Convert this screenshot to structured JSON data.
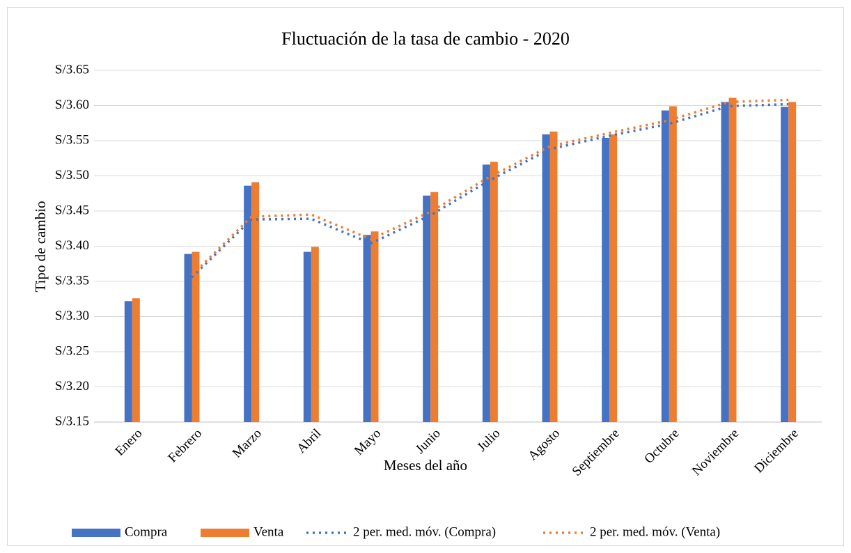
{
  "chart_data": {
    "type": "bar",
    "title": "Fluctuación de la tasa de cambio - 2020",
    "x_label": "Meses del año",
    "y_label": "Tipo de cambio",
    "categories": [
      "Enero",
      "Febrero",
      "Marzo",
      "Abril",
      "Mayo",
      "Junio",
      "Julio",
      "Agosto",
      "Septiembre",
      "Octubre",
      "Noviembre",
      "Diciembre"
    ],
    "series": [
      {
        "name": "Compra",
        "color": "#4472c4",
        "kind": "bar",
        "values": [
          3.322,
          3.389,
          3.486,
          3.392,
          3.416,
          3.472,
          3.516,
          3.559,
          3.554,
          3.593,
          3.605,
          3.598
        ]
      },
      {
        "name": "Venta",
        "color": "#ed7d31",
        "kind": "bar",
        "values": [
          3.326,
          3.392,
          3.491,
          3.399,
          3.421,
          3.477,
          3.52,
          3.563,
          3.559,
          3.599,
          3.611,
          3.605
        ]
      },
      {
        "name": "2 per. med. móv. (Compra)",
        "color": "#4472c4",
        "kind": "line",
        "values": [
          null,
          3.356,
          3.438,
          3.439,
          3.404,
          3.444,
          3.494,
          3.538,
          3.557,
          3.574,
          3.599,
          3.602
        ]
      },
      {
        "name": "2 per. med. móv. (Venta)",
        "color": "#ed7d31",
        "kind": "line",
        "values": [
          null,
          3.359,
          3.442,
          3.445,
          3.41,
          3.449,
          3.499,
          3.542,
          3.561,
          3.579,
          3.605,
          3.608
        ]
      }
    ],
    "ylim": [
      3.15,
      3.65
    ],
    "yticks": [
      {
        "value": 3.15,
        "label": "S/3.15"
      },
      {
        "value": 3.2,
        "label": "S/3.20"
      },
      {
        "value": 3.25,
        "label": "S/3.25"
      },
      {
        "value": 3.3,
        "label": "S/3.30"
      },
      {
        "value": 3.35,
        "label": "S/3.35"
      },
      {
        "value": 3.4,
        "label": "S/3.40"
      },
      {
        "value": 3.45,
        "label": "S/3.45"
      },
      {
        "value": 3.5,
        "label": "S/3.50"
      },
      {
        "value": 3.55,
        "label": "S/3.55"
      },
      {
        "value": 3.6,
        "label": "S/3.60"
      },
      {
        "value": 3.65,
        "label": "S/3.65"
      }
    ],
    "grid": true,
    "legend": "bottom"
  }
}
